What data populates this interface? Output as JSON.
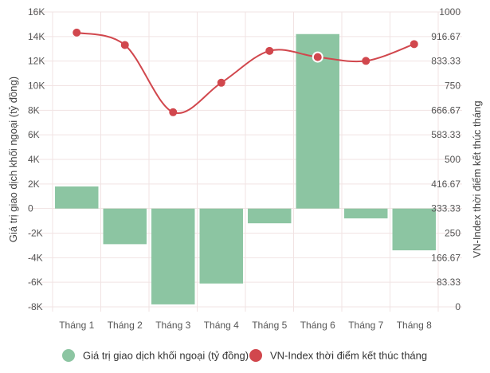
{
  "chart_data": {
    "type": "bar",
    "categories": [
      "Tháng 1",
      "Tháng 2",
      "Tháng 3",
      "Tháng 4",
      "Tháng 5",
      "Tháng 6",
      "Tháng 7",
      "Tháng 8"
    ],
    "series": [
      {
        "name": "Giá trị giao dịch khối ngoại (tỷ đồng)",
        "type": "bar",
        "axis": "left",
        "color": "#8cc5a2",
        "values": [
          1800,
          -2900,
          -7800,
          -6100,
          -1200,
          14200,
          -800,
          -3400
        ]
      },
      {
        "name": "VN-Index thời điểm kết thúc tháng",
        "type": "line",
        "axis": "right",
        "color": "#d1474d",
        "values": [
          930,
          888,
          660,
          760,
          868,
          847,
          834,
          891
        ]
      }
    ],
    "ylabel": "Giá trị giao dịch khối ngoại (tỷ đồng)",
    "y2label": "VN-Index thời điểm kết thúc tháng",
    "ylim": [
      -8000,
      16000
    ],
    "y2lim": [
      0,
      1000
    ],
    "yticks": [
      "16K",
      "14K",
      "12K",
      "10K",
      "8K",
      "6K",
      "4K",
      "2K",
      "0",
      "-2K",
      "-4K",
      "-6K",
      "-8K"
    ],
    "y2ticks": [
      "1000",
      "916.67",
      "833.33",
      "750",
      "666.67",
      "583.33",
      "500",
      "416.67",
      "333.33",
      "250",
      "166.67",
      "83.33",
      "0"
    ],
    "highlighted_point": "Tháng 6",
    "grid": true,
    "legend": "bottom"
  }
}
